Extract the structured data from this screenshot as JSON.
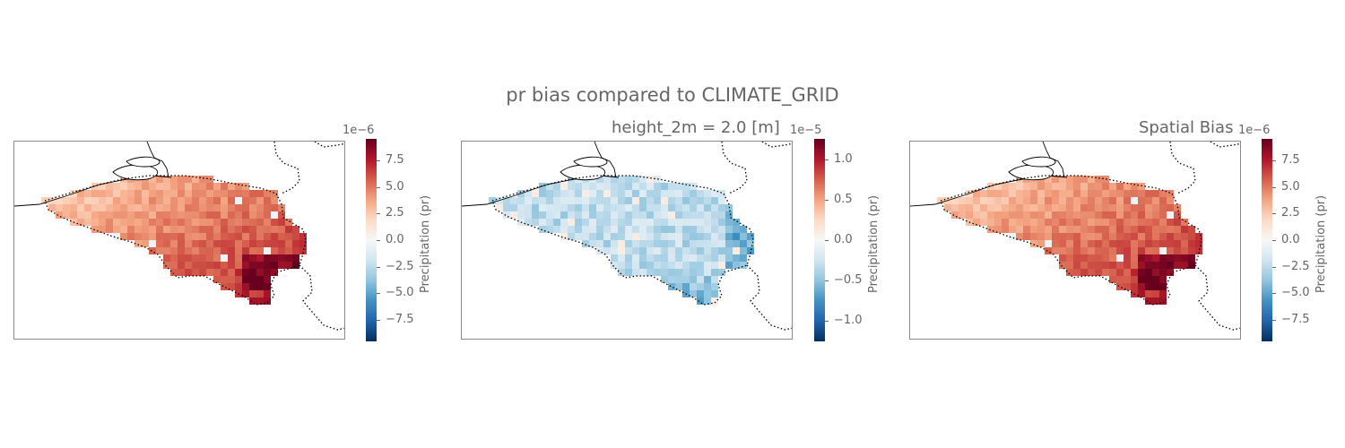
{
  "suptitle": "pr bias compared to CLIMATE_GRID",
  "chart_data": [
    {
      "type": "heatmap",
      "title": "",
      "colorbar": {
        "label": "Precipitation (pr)",
        "exponent_label": "1e−6",
        "range": [
          -9.5,
          9.5
        ],
        "ticks": [
          "7.5",
          "5.0",
          "2.5",
          "0.0",
          "−2.5",
          "−5.0",
          "−7.5"
        ],
        "tick_values": [
          7.5,
          5.0,
          2.5,
          0.0,
          -2.5,
          -5.0,
          -7.5
        ],
        "colormap": "RdBu_r"
      },
      "field_summary": {
        "dominant_sign": "positive",
        "typical_value": 4.0,
        "max_value": 9.0
      }
    },
    {
      "type": "heatmap",
      "title": "height_2m = 2.0 [m]",
      "colorbar": {
        "label": "Precipitation (pr)",
        "exponent_label": "1e−5",
        "range": [
          -1.25,
          1.25
        ],
        "ticks": [
          "1.0",
          "0.5",
          "0.0",
          "−0.5",
          "−1.0"
        ],
        "tick_values": [
          1.0,
          0.5,
          0.0,
          -0.5,
          -1.0
        ],
        "colormap": "RdBu_r"
      },
      "field_summary": {
        "dominant_sign": "negative",
        "typical_value": -0.3,
        "min_value": -1.2
      }
    },
    {
      "type": "heatmap",
      "title": "Spatial Bias",
      "colorbar": {
        "label": "Precipitation (pr)",
        "exponent_label": "1e−6",
        "range": [
          -9.5,
          9.5
        ],
        "ticks": [
          "7.5",
          "5.0",
          "2.5",
          "0.0",
          "−2.5",
          "−5.0",
          "−7.5"
        ],
        "tick_values": [
          7.5,
          5.0,
          2.5,
          0.0,
          -2.5,
          -5.0,
          -7.5
        ],
        "colormap": "RdBu_r"
      },
      "field_summary": {
        "dominant_sign": "positive",
        "typical_value": 4.0,
        "max_value": 9.0
      }
    }
  ]
}
